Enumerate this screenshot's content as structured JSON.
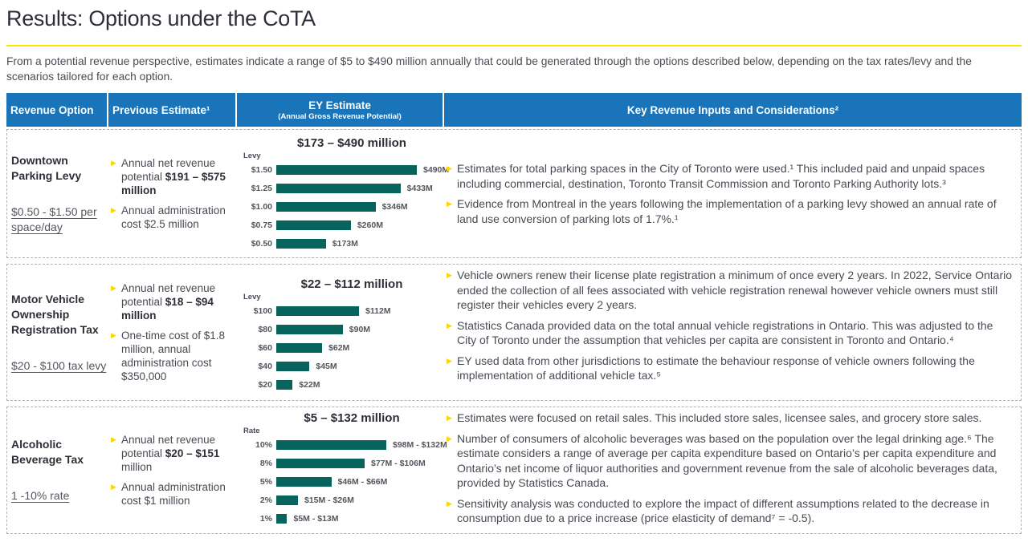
{
  "page": {
    "title": "Results: Options under the CoTA",
    "intro": "From a potential revenue perspective, estimates indicate a range of $5 to $490 million annually that could be generated through the options described below, depending on the tax rates/levy and the scenarios tailored for each option."
  },
  "colors": {
    "header_blue": "#1a74b9",
    "bar_teal": "#07645c",
    "accent_yellow": "#ffe600",
    "bullet_yellow": "#ffd500"
  },
  "table": {
    "headers": {
      "col1": "Revenue Option",
      "col2": "Previous Estimate¹",
      "col3_main": "EY Estimate",
      "col3_sub": "(Annual Gross Revenue Potential)",
      "col4": "Key Revenue Inputs and Considerations²"
    },
    "rows": [
      {
        "option": {
          "title": "Downtown Parking Levy",
          "rate": "$0.50 - $1.50 per space/day"
        },
        "previous": [
          {
            "pre": "Annual net revenue potential ",
            "bold": "$191 – $575 million",
            "post": ""
          },
          {
            "pre": "Annual administration cost $2.5 million",
            "bold": "",
            "post": ""
          }
        ],
        "considerations": [
          "Estimates for total parking spaces in the City of Toronto were used.¹ This included paid and unpaid spaces including commercial, destination, Toronto Transit Commission and Toronto Parking Authority lots.³",
          "Evidence from Montreal in the years following the implementation of a parking levy showed an annual rate of land use conversion of parking lots of 1.7%.¹"
        ]
      },
      {
        "option": {
          "title": "Motor Vehicle Ownership Registration Tax",
          "rate": "$20 - $100 tax levy"
        },
        "previous": [
          {
            "pre": "Annual net revenue potential ",
            "bold": "$18 – $94 million",
            "post": ""
          },
          {
            "pre": "One-time cost of $1.8 million, annual administration cost $350,000",
            "bold": "",
            "post": ""
          }
        ],
        "considerations": [
          "Vehicle owners renew their license plate registration a minimum of once every 2 years. In 2022, Service Ontario ended the collection of all fees associated with vehicle registration renewal however vehicle owners must still register their vehicles every 2 years.",
          "Statistics Canada provided data on the total annual vehicle registrations in Ontario. This was adjusted to the City of Toronto under the assumption that vehicles per capita are consistent in Toronto and Ontario.⁴",
          "EY used data from other jurisdictions to estimate the behaviour response of vehicle owners following the implementation of additional vehicle tax.⁵"
        ]
      },
      {
        "option": {
          "title": "Alcoholic Beverage Tax",
          "rate": "1 -10% rate"
        },
        "previous": [
          {
            "pre": "Annual net revenue potential ",
            "bold": "$20 – $151",
            "post": " million"
          },
          {
            "pre": "Annual administration cost $1 million",
            "bold": "",
            "post": ""
          }
        ],
        "considerations": [
          "Estimates were focused on retail sales. This included store sales, licensee sales, and grocery store sales.",
          "Number of consumers of alcoholic beverages was based on the population over the legal drinking age.⁶ The estimate considers a range of average per capita expenditure based on Ontario’s per capita expenditure and Ontario’s net income of liquor authorities and government revenue from the sale of alcoholic beverages data, provided by Statistics Canada.",
          "Sensitivity analysis was conducted to explore the impact of different assumptions related to the decrease in consumption due to a price increase (price elasticity of demand⁷ = -0.5)."
        ]
      }
    ]
  },
  "chart_data": [
    {
      "type": "bar",
      "orientation": "horizontal",
      "title": "$173 – $490 million",
      "axis_label": "Levy",
      "categories": [
        "$1.50",
        "$1.25",
        "$1.00",
        "$0.75",
        "$0.50"
      ],
      "values": [
        490,
        433,
        346,
        260,
        173
      ],
      "labels": [
        "$490M",
        "$433M",
        "$346M",
        "$260M",
        "$173M"
      ],
      "xmax": 490,
      "bar_color": "#07645c",
      "grid": false,
      "legend": false
    },
    {
      "type": "bar",
      "orientation": "horizontal",
      "title": "$22 – $112 million",
      "axis_label": "Levy",
      "categories": [
        "$100",
        "$80",
        "$60",
        "$40",
        "$20"
      ],
      "values": [
        112,
        90,
        62,
        45,
        22
      ],
      "labels": [
        "$112M",
        "$90M",
        "$62M",
        "$45M",
        "$22M"
      ],
      "xmax": 112,
      "bar_color": "#07645c",
      "grid": false,
      "legend": false
    },
    {
      "type": "bar",
      "orientation": "horizontal",
      "title": "$5 – $132 million",
      "axis_label": "Rate",
      "categories": [
        "10%",
        "8%",
        "5%",
        "2%",
        "1%"
      ],
      "values": [
        132,
        106,
        66,
        26,
        13
      ],
      "values_low": [
        98,
        77,
        46,
        15,
        5
      ],
      "labels": [
        "$98M - $132M",
        "$77M - $106M",
        "$46M - $66M",
        "$15M - $26M",
        "$5M - $13M"
      ],
      "xmax": 132,
      "bar_color": "#07645c",
      "grid": false,
      "legend": false
    }
  ]
}
